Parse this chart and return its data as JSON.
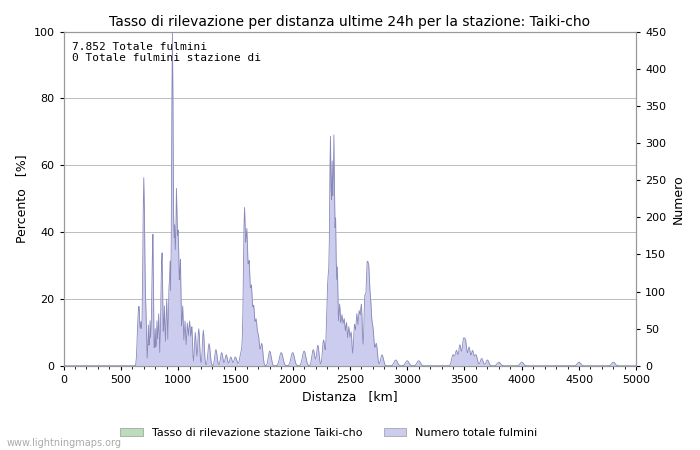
{
  "title": "Tasso di rilevazione per distanza ultime 24h per la stazione: Taiki-cho",
  "xlabel": "Distanza   [km]",
  "ylabel_left": "Percento   [%]",
  "ylabel_right": "Numero",
  "annotation_line1": "7.852 Totale fulmini",
  "annotation_line2": "0 Totale fulmini stazione di",
  "xlim": [
    0,
    5000
  ],
  "ylim_left": [
    0,
    100
  ],
  "ylim_right": [
    0,
    450
  ],
  "xticks": [
    0,
    500,
    1000,
    1500,
    2000,
    2500,
    3000,
    3500,
    4000,
    4500,
    5000
  ],
  "yticks_left": [
    0,
    20,
    40,
    60,
    80,
    100
  ],
  "yticks_right": [
    0,
    50,
    100,
    150,
    200,
    250,
    300,
    350,
    400,
    450
  ],
  "legend_green_label": "Tasso di rilevazione stazione Taiki-cho",
  "legend_blue_label": "Numero totale fulmini",
  "watermark": "www.lightningmaps.org",
  "fill_green_color": "#bbddbb",
  "fill_blue_color": "#ccccee",
  "line_color": "#8888bb",
  "bg_color": "#ffffff",
  "grid_color": "#bbbbbb",
  "title_fontsize": 10,
  "label_fontsize": 9,
  "tick_fontsize": 8,
  "annotation_fontsize": 8,
  "figsize": [
    7.0,
    4.5
  ],
  "dpi": 100
}
